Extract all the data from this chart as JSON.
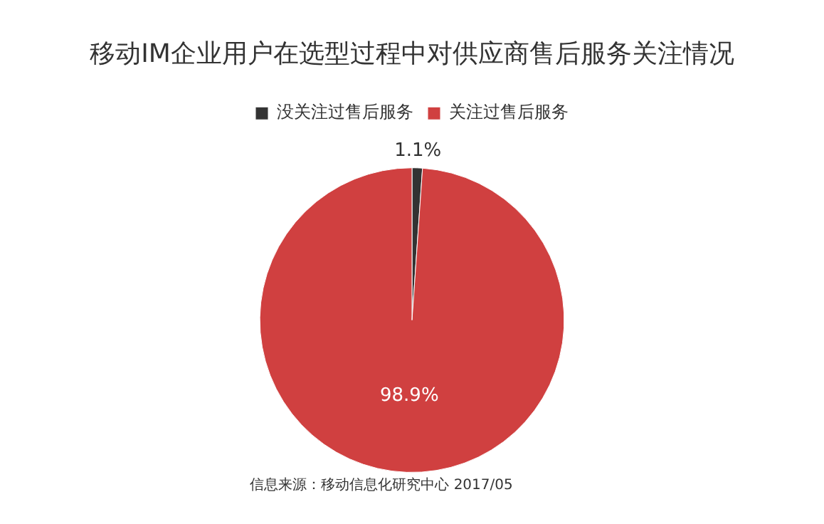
{
  "chart_data": {
    "type": "pie",
    "title": "移动IM企业用户在选型过程中对供应商售后服务关注情况",
    "categories": [
      "没关注过售后服务",
      "关注过售后服务"
    ],
    "values": [
      1.1,
      98.9
    ],
    "colors": [
      "#333333",
      "#d04040"
    ],
    "value_labels": [
      "1.1%",
      "98.9%"
    ],
    "legend": "top",
    "annotations": [
      "信息来源：移动信息化研究中心 2017/05"
    ]
  }
}
